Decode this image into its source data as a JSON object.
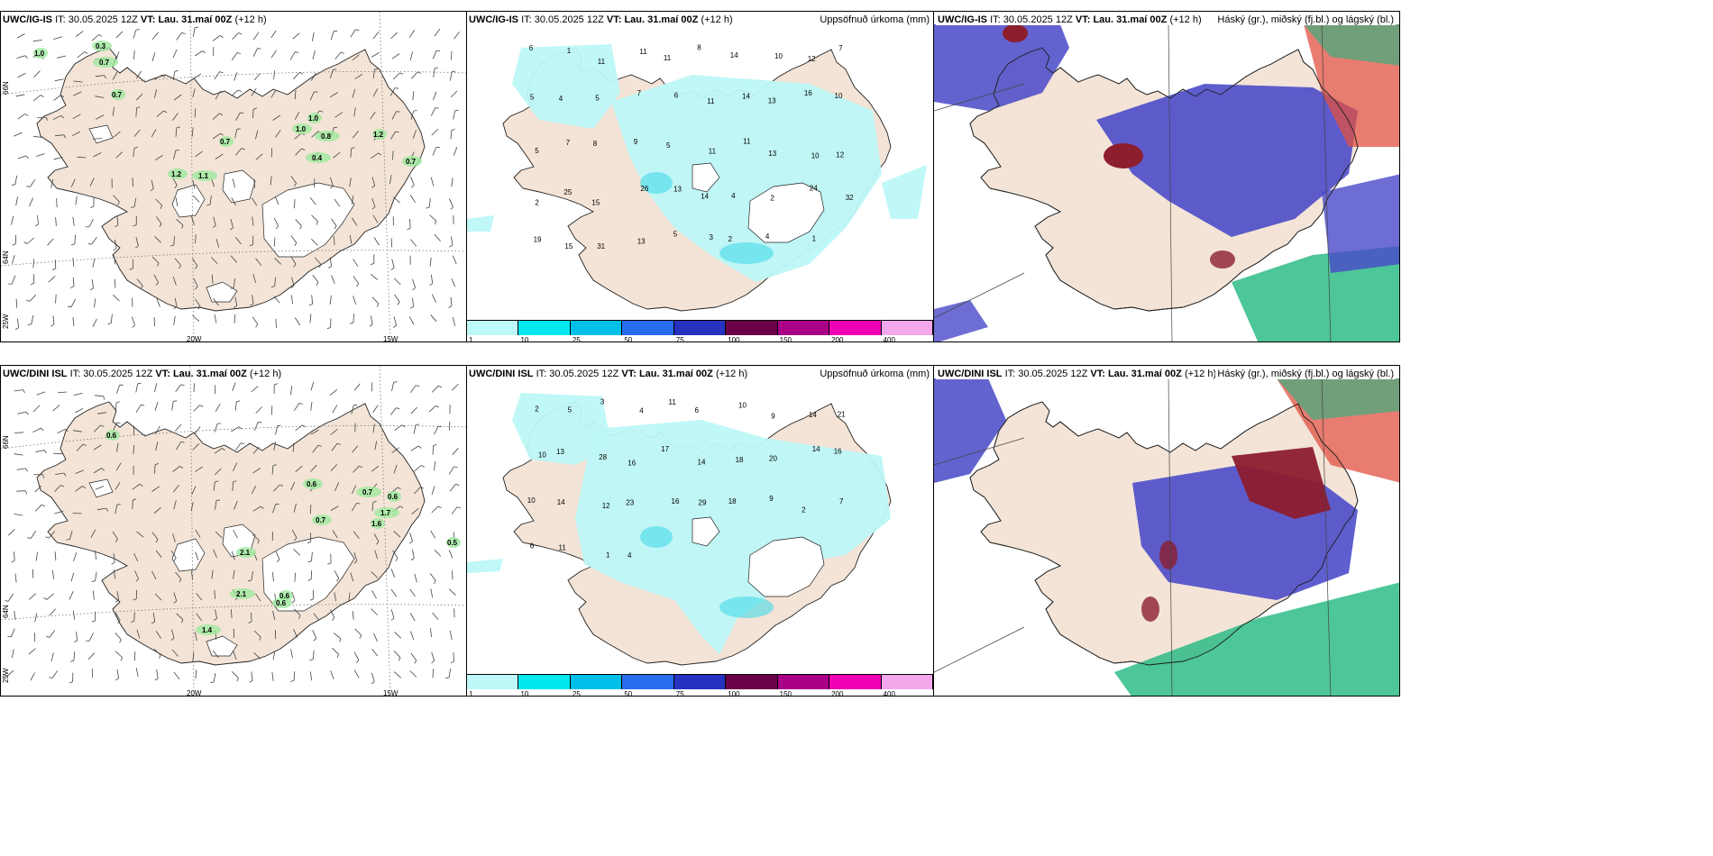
{
  "panels": [
    {
      "id": "ig-wind",
      "header": {
        "model": "UWC/IG-IS",
        "it_prefix": "IT:",
        "it": "30.05.2025 12Z",
        "vt_prefix": "VT:",
        "vt": "Lau. 31.maí 00Z",
        "lead": "(+12 h)"
      },
      "right_title": "",
      "type": "wind"
    },
    {
      "id": "ig-precip",
      "header": {
        "model": "UWC/IG-IS",
        "it_prefix": "IT:",
        "it": "30.05.2025 12Z",
        "vt_prefix": "VT:",
        "vt": "Lau. 31.maí 00Z",
        "lead": "(+12 h)"
      },
      "right_title": "Uppsöfnuð úrkoma (mm)",
      "type": "precip"
    },
    {
      "id": "ig-cloud",
      "header": {
        "model": "UWC/IG-IS",
        "it_prefix": "IT:",
        "it": "30.05.2025 12Z",
        "vt_prefix": "VT:",
        "vt": "Lau. 31.maí 00Z",
        "lead": "(+12 h)"
      },
      "right_title": "Háský (gr.), miðský (fj.bl.) og lágský (bl.)",
      "type": "cloud"
    },
    {
      "id": "dini-wind",
      "header": {
        "model": "UWC/DINI ISL",
        "it_prefix": "IT:",
        "it": "30.05.2025 12Z",
        "vt_prefix": "VT:",
        "vt": "Lau. 31.maí 00Z",
        "lead": "(+12 h)"
      },
      "right_title": "",
      "type": "wind"
    },
    {
      "id": "dini-precip",
      "header": {
        "model": "UWC/DINI ISL",
        "it_prefix": "IT:",
        "it": "30.05.2025 12Z",
        "vt_prefix": "VT:",
        "vt": "Lau. 31.maí 00Z",
        "lead": "(+12 h)"
      },
      "right_title": "Uppsöfnuð úrkoma (mm)",
      "type": "precip"
    },
    {
      "id": "dini-cloud",
      "header": {
        "model": "UWC/DINI ISL",
        "it_prefix": "IT:",
        "it": "30.05.2025 12Z",
        "vt_prefix": "VT:",
        "vt": "Lau. 31.maí 00Z",
        "lead": "(+12 h)"
      },
      "right_title": "Háský (gr.), miðský (fj.bl.) og lágský (bl.)",
      "type": "cloud"
    }
  ],
  "axis_labels": {
    "lat66": "66N",
    "lat64": "64N",
    "lon25": "25W",
    "lon20": "20W",
    "lon15": "15W"
  },
  "precip_legend": {
    "labels": [
      "1",
      "10",
      "25",
      "50",
      "75",
      "100",
      "150",
      "200",
      "400"
    ],
    "colors": [
      "#bff8f8",
      "#00e8ee",
      "#00c0ea",
      "#2a6cee",
      "#2632c0",
      "#6a0048",
      "#aa0088",
      "#f000b4",
      "#f4a8ec"
    ]
  },
  "colors": {
    "land": "#f3e4d7",
    "wind_green": "#9de89d",
    "precip_light": "#bdf7f7",
    "precip_mid": "#46dbe8",
    "cloud_blue": "#4848c8",
    "cloud_red": "#8c1e2e",
    "cloud_green": "#20b880"
  },
  "precip_ig": [
    "6",
    "1",
    "11",
    "11",
    "11",
    "8",
    "14",
    "10",
    "12",
    "7",
    "5",
    "4",
    "5",
    "7",
    "6",
    "11",
    "14",
    "13",
    "16",
    "10",
    "5",
    "7",
    "8",
    "9",
    "5",
    "11",
    "11",
    "13",
    "10",
    "12",
    "2",
    "25",
    "15",
    "26",
    "13",
    "14",
    "4",
    "2",
    "24",
    "32",
    "19",
    "15",
    "31",
    "13",
    "5",
    "3",
    "2",
    "4",
    "1"
  ],
  "precip_dini": [
    "2",
    "5",
    "3",
    "4",
    "11",
    "6",
    "10",
    "9",
    "14",
    "21",
    "10",
    "13",
    "28",
    "16",
    "17",
    "14",
    "18",
    "20",
    "14",
    "16",
    "10",
    "14",
    "12",
    "23",
    "16",
    "29",
    "18",
    "9",
    "2",
    "7",
    "6",
    "11",
    "1",
    "4"
  ],
  "wind_ig_values": [
    "1.0",
    "0.3",
    "0.7",
    "0.7",
    "1.2",
    "1.1",
    "1.0",
    "1.0",
    "0.8",
    "1.2",
    "0.7",
    "0.4",
    "0.7"
  ],
  "wind_dini_values": [
    "0.6",
    "0.6",
    "0.7",
    "0.6",
    "0.7",
    "1.7",
    "1.6",
    "2.1",
    "2.1",
    "0.6",
    "0.6",
    "1.4",
    "0.5"
  ]
}
